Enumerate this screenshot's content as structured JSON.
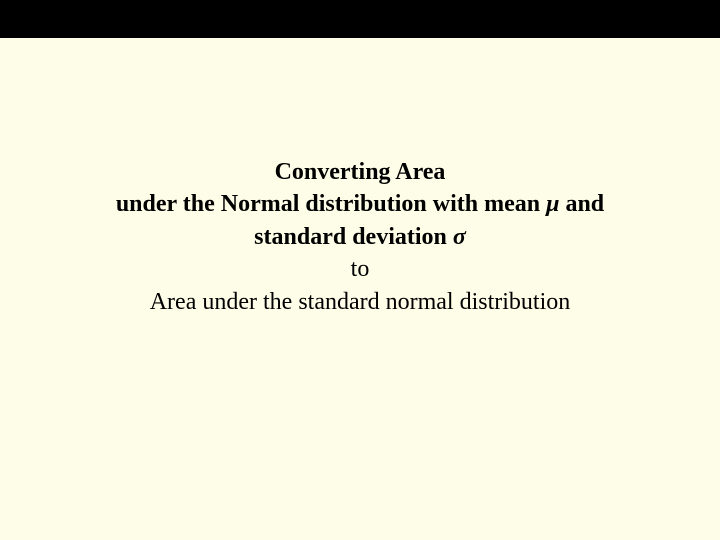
{
  "slide": {
    "background_color": "#fdfde8",
    "outer_background_color": "#000000",
    "text_color": "#000000",
    "font_family": "Times New Roman",
    "content_fontsize": 24,
    "line1": "Converting Area",
    "line2_prefix": "under the Normal distribution with mean ",
    "line2_symbol": "μ",
    "line2_suffix": " and",
    "line3_prefix": "standard deviation ",
    "line3_symbol": "σ",
    "line4": "to",
    "line5": "Area under the standard normal distribution"
  }
}
